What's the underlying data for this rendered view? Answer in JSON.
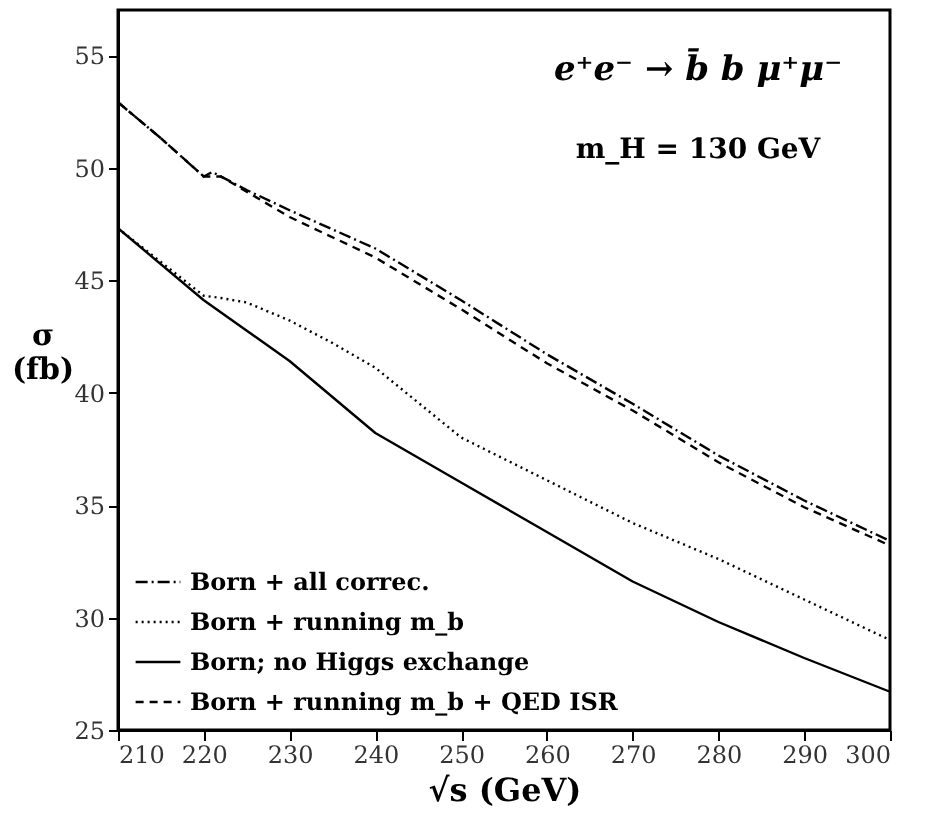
{
  "chart_data": {
    "type": "line",
    "xlabel": "√s  (GeV)",
    "ylabel": "σ (fb)",
    "annotations": [
      "e⁺e⁻ → b̄ b μ⁺μ⁻",
      "m_H = 130  GeV"
    ],
    "xlim": [
      210,
      300
    ],
    "ylim": [
      25,
      57
    ],
    "xticks": [
      210,
      220,
      230,
      240,
      250,
      260,
      270,
      280,
      290,
      300
    ],
    "yticks": [
      25,
      30,
      35,
      40,
      45,
      50,
      55
    ],
    "grid": false,
    "legend": "bottom left",
    "tick_labels": "xy",
    "series": [
      {
        "name": "Born + all correc.",
        "color": "#000000",
        "line_style": "dashdot",
        "x": [
          210,
          215,
          220,
          221,
          225,
          230,
          240,
          250,
          260,
          270,
          280,
          290,
          300
        ],
        "values": [
          52.9,
          51.3,
          49.6,
          49.8,
          49.0,
          48.1,
          46.4,
          44.1,
          41.7,
          39.5,
          37.2,
          35.2,
          33.4
        ]
      },
      {
        "name": "Born + running m_b",
        "color": "#000000",
        "line_style": "dotted",
        "x": [
          210,
          215,
          220,
          222,
          225,
          230,
          235,
          240,
          250,
          260,
          270,
          280,
          290,
          300
        ],
        "values": [
          47.3,
          45.8,
          44.3,
          44.2,
          44.0,
          43.2,
          42.2,
          41.1,
          38.0,
          36.1,
          34.2,
          32.6,
          30.8,
          29.0
        ]
      },
      {
        "name": "Born; no Higgs exchange",
        "color": "#000000",
        "line_style": "solid",
        "x": [
          210,
          220,
          230,
          240,
          250,
          260,
          270,
          280,
          290,
          300
        ],
        "values": [
          47.3,
          44.1,
          41.4,
          38.2,
          36.0,
          33.8,
          31.6,
          29.8,
          28.2,
          26.7
        ]
      },
      {
        "name": "Born + running m_b + QED ISR",
        "color": "#000000",
        "line_style": "dashed",
        "x": [
          210,
          215,
          220,
          222,
          230,
          240,
          250,
          260,
          270,
          280,
          290,
          300
        ],
        "values": [
          52.9,
          51.3,
          49.6,
          49.6,
          47.8,
          46.0,
          43.7,
          41.3,
          39.2,
          36.9,
          34.9,
          33.2
        ]
      }
    ]
  }
}
